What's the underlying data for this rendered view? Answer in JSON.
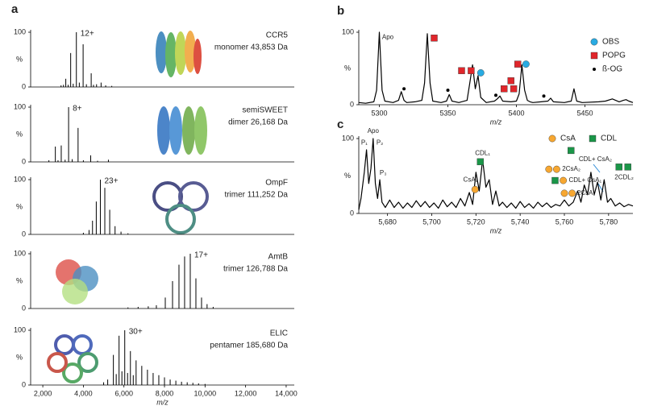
{
  "chart_data": [
    {
      "type": "stem",
      "panel": "a",
      "title": "CCR5",
      "subtitle": "monomer 43,853 Da",
      "peak_label": "12+",
      "color": "#000000",
      "x": [
        2900,
        3020,
        3133,
        3250,
        3374,
        3500,
        3655,
        3800,
        3988,
        4150,
        4386,
        4500,
        4650,
        4874,
        5100,
        5400
      ],
      "values": [
        3,
        4,
        15,
        4,
        62,
        6,
        100,
        8,
        78,
        5,
        25,
        4,
        5,
        8,
        3,
        2
      ],
      "xlim": [
        1400,
        14400
      ],
      "ylim": [
        0,
        100
      ],
      "yticks": [
        0,
        100
      ],
      "ylabel": "%"
    },
    {
      "type": "stem",
      "title": "semiSWEET",
      "subtitle": "dimer 26,168 Da",
      "peak_label": "8+",
      "color": "#000000",
      "x": [
        2300,
        2618,
        2750,
        2909,
        3100,
        3272,
        3450,
        3739,
        4000,
        4362,
        4700,
        5235
      ],
      "values": [
        3,
        28,
        3,
        30,
        4,
        100,
        5,
        62,
        3,
        12,
        2,
        4
      ],
      "xlim": [
        1400,
        14400
      ],
      "ylim": [
        0,
        100
      ],
      "yticks": [
        0,
        100
      ],
      "ylabel": "%"
    },
    {
      "type": "stem",
      "title": "OmpF",
      "subtitle": "trimer 111,252 Da",
      "peak_label": "23+",
      "color": "#000000",
      "x": [
        4000,
        4280,
        4451,
        4636,
        4838,
        5058,
        5299,
        5563,
        5856,
        6200
      ],
      "values": [
        3,
        8,
        25,
        60,
        100,
        85,
        45,
        15,
        5,
        2
      ],
      "xlim": [
        1400,
        14400
      ],
      "ylim": [
        0,
        100
      ],
      "yticks": [
        0,
        100
      ],
      "ylabel": "%"
    },
    {
      "type": "stem",
      "title": "AmtB",
      "subtitle": "trimer 126,788 Da",
      "peak_label": "17+",
      "color": "#000000",
      "x": [
        6200,
        6700,
        7200,
        7600,
        8039,
        8397,
        8714,
        8992,
        9271,
        9549,
        9827,
        10100,
        10400
      ],
      "values": [
        2,
        3,
        4,
        6,
        20,
        50,
        80,
        95,
        100,
        55,
        20,
        8,
        3
      ],
      "xlim": [
        1400,
        14400
      ],
      "ylim": [
        0,
        100
      ],
      "yticks": [
        0,
        100
      ],
      "ylabel": "%"
    },
    {
      "type": "stem",
      "title": "ELIC",
      "subtitle": "pentamer 185,680 Da",
      "peak_label": "30+",
      "color": "#000000",
      "x": [
        5000,
        5200,
        5480,
        5620,
        5760,
        5900,
        6040,
        6180,
        6320,
        6460,
        6600,
        6880,
        7160,
        7440,
        7720,
        8000,
        8280,
        8560,
        8840,
        9120,
        9400,
        9680,
        10000
      ],
      "values": [
        5,
        10,
        55,
        20,
        90,
        25,
        100,
        22,
        62,
        18,
        45,
        35,
        28,
        22,
        18,
        14,
        10,
        8,
        6,
        5,
        4,
        3,
        2
      ],
      "xlim": [
        1400,
        14400
      ],
      "ylim": [
        0,
        100
      ],
      "yticks": [
        0,
        100
      ],
      "ylabel": "%",
      "xticks": [
        {
          "value": 2000,
          "label": "2,000"
        },
        {
          "value": 4000,
          "label": "4,000"
        },
        {
          "value": 6000,
          "label": "6,000"
        },
        {
          "value": 8000,
          "label": "8,000"
        },
        {
          "value": 10000,
          "label": "10,000"
        },
        {
          "value": 12000,
          "label": "12,000"
        },
        {
          "value": 14000,
          "label": "14,000"
        }
      ],
      "xlabel": "m/z"
    },
    {
      "type": "line",
      "panel": "b",
      "color": "#000000",
      "x": [
        5285,
        5290,
        5296,
        5298,
        5300,
        5302,
        5304,
        5310,
        5314,
        5316,
        5318,
        5320,
        5326,
        5331,
        5333,
        5335,
        5337,
        5339,
        5345,
        5349,
        5351,
        5353,
        5358,
        5364,
        5366,
        5368,
        5370,
        5372,
        5374,
        5378,
        5384,
        5386,
        5388,
        5390,
        5396,
        5400,
        5402,
        5404,
        5406,
        5408,
        5410,
        5412,
        5418,
        5423,
        5425,
        5427,
        5435,
        5440,
        5442,
        5444,
        5448,
        5460,
        5465,
        5470,
        5475,
        5478,
        5480,
        5482,
        5485
      ],
      "values": [
        3,
        2,
        4,
        20,
        100,
        20,
        5,
        3,
        6,
        18,
        6,
        3,
        4,
        6,
        30,
        98,
        30,
        5,
        3,
        5,
        14,
        5,
        3,
        6,
        30,
        55,
        22,
        40,
        10,
        3,
        5,
        8,
        12,
        5,
        4,
        5,
        15,
        55,
        20,
        6,
        4,
        3,
        4,
        5,
        9,
        4,
        3,
        5,
        22,
        5,
        3,
        4,
        5,
        8,
        4,
        6,
        7,
        5,
        3
      ],
      "xlim": [
        5285,
        5485
      ],
      "ylim": [
        0,
        100
      ],
      "yticks": [
        0,
        100
      ],
      "ylabel": "%",
      "xticks": [
        5300,
        5350,
        5400,
        5450
      ],
      "xlabel": "m/z",
      "legend_position": "top-right",
      "legend": [
        {
          "name": "OBS",
          "color": "#29abe2",
          "marker": "circle"
        },
        {
          "name": "POPG",
          "color": "#e0262b",
          "marker": "square"
        },
        {
          "name": "ß-OG",
          "color": "#000000",
          "marker": "dot"
        }
      ],
      "markers": [
        {
          "symbol": "POPG",
          "x": 5340,
          "y": 92
        },
        {
          "symbol": "POPG",
          "x": 5360,
          "y": 47
        },
        {
          "symbol": "POPG",
          "x": 5367,
          "y": 47
        },
        {
          "symbol": "OBS",
          "x": 5374,
          "y": 44
        },
        {
          "symbol": "POPG",
          "x": 5396,
          "y": 33
        },
        {
          "symbol": "POPG",
          "x": 5391,
          "y": 22
        },
        {
          "symbol": "POPG",
          "x": 5398,
          "y": 22
        },
        {
          "symbol": "POPG",
          "x": 5401,
          "y": 56
        },
        {
          "symbol": "OBS",
          "x": 5407,
          "y": 56
        },
        {
          "symbol": "ß-OG",
          "x": 5318,
          "y": 22
        },
        {
          "symbol": "ß-OG",
          "x": 5350,
          "y": 20
        },
        {
          "symbol": "ß-OG",
          "x": 5385,
          "y": 13
        },
        {
          "symbol": "ß-OG",
          "x": 5420,
          "y": 12
        }
      ],
      "labels": [
        {
          "text": "Apo",
          "x": 5302,
          "y": 93,
          "anchor": "start"
        }
      ]
    },
    {
      "type": "line",
      "panel": "c",
      "color": "#000000",
      "x": [
        5667,
        5668,
        5669.5,
        5670.5,
        5671.5,
        5672.5,
        5673.5,
        5674.5,
        5675.5,
        5676.5,
        5677.5,
        5679,
        5681,
        5683,
        5685,
        5687,
        5689,
        5691,
        5693,
        5695,
        5697,
        5699,
        5701,
        5703,
        5705,
        5707,
        5709,
        5711,
        5713,
        5715,
        5717,
        5718.5,
        5720,
        5721.5,
        5723,
        5724.5,
        5726,
        5727.5,
        5729,
        5730.5,
        5732,
        5734,
        5736,
        5738,
        5740,
        5742,
        5744,
        5746,
        5748,
        5750,
        5752,
        5754,
        5756,
        5758,
        5760,
        5762,
        5764,
        5766,
        5767.5,
        5769,
        5770.5,
        5772,
        5773.5,
        5775,
        5776.5,
        5778,
        5779.5,
        5781,
        5783,
        5785,
        5787,
        5789,
        5791
      ],
      "values": [
        5,
        20,
        55,
        85,
        40,
        60,
        100,
        40,
        20,
        45,
        15,
        8,
        18,
        8,
        15,
        7,
        14,
        8,
        17,
        9,
        16,
        8,
        14,
        7,
        18,
        9,
        15,
        8,
        20,
        10,
        28,
        12,
        55,
        30,
        72,
        35,
        45,
        12,
        30,
        10,
        15,
        8,
        14,
        7,
        16,
        8,
        13,
        7,
        15,
        9,
        14,
        8,
        12,
        10,
        18,
        10,
        15,
        30,
        15,
        38,
        25,
        55,
        25,
        42,
        18,
        45,
        15,
        20,
        10,
        14,
        9,
        12,
        10
      ],
      "xlim": [
        5667,
        5791
      ],
      "ylim": [
        0,
        100
      ],
      "yticks": [
        0,
        100
      ],
      "ylabel": "%",
      "xticks": [
        {
          "value": 5680,
          "label": "5,680"
        },
        {
          "value": 5700,
          "label": "5,700"
        },
        {
          "value": 5720,
          "label": "5,720"
        },
        {
          "value": 5740,
          "label": "5,740"
        },
        {
          "value": 5760,
          "label": "5,760"
        },
        {
          "value": 5780,
          "label": "5,780"
        }
      ],
      "xlabel": "m/z",
      "legend_position": "top",
      "legend": [
        {
          "name": "CsA",
          "color": "#f7a731",
          "marker": "circle"
        },
        {
          "name": "CDL",
          "color": "#1a9648",
          "marker": "square"
        }
      ],
      "markers": [
        {
          "symbol": "CDL",
          "x": 5722,
          "y": 69
        },
        {
          "symbol": "CsA",
          "x": 5719.6,
          "y": 32
        },
        {
          "symbol": "CDL",
          "x": 5763,
          "y": 84
        },
        {
          "symbol": "CsA",
          "x": 5753,
          "y": 59
        },
        {
          "symbol": "CsA",
          "x": 5756.5,
          "y": 59
        },
        {
          "symbol": "CDL",
          "x": 5755.8,
          "y": 44
        },
        {
          "symbol": "CsA",
          "x": 5759.5,
          "y": 44
        },
        {
          "symbol": "CsA",
          "x": 5760,
          "y": 27
        },
        {
          "symbol": "CsA",
          "x": 5763.5,
          "y": 27
        },
        {
          "symbol": "CDL",
          "x": 5784.7,
          "y": 62
        },
        {
          "symbol": "CDL",
          "x": 5788.7,
          "y": 62
        }
      ],
      "labels": [
        {
          "text": "Apo",
          "x": 5673.5,
          "y": 110,
          "anchor": "middle"
        },
        {
          "text": "P₁",
          "x": 5669.5,
          "y": 94,
          "anchor": "middle"
        },
        {
          "text": "P₂",
          "x": 5676.5,
          "y": 94,
          "anchor": "middle"
        },
        {
          "text": "P₃",
          "x": 5678,
          "y": 54,
          "anchor": "middle"
        },
        {
          "text": "CDL₁",
          "x": 5723,
          "y": 80,
          "anchor": "middle"
        },
        {
          "text": "CsA₁",
          "x": 5717.5,
          "y": 45,
          "anchor": "middle"
        },
        {
          "text": "CDL+ CsA₂",
          "x": 5774,
          "y": 72,
          "anchor": "middle"
        },
        {
          "text": "2CsA₂",
          "x": 5759,
          "y": 59,
          "anchor": "start"
        },
        {
          "text": "CDL+ CsA₁",
          "x": 5762,
          "y": 44,
          "anchor": "start"
        },
        {
          "text": "2CsA₁",
          "x": 5765.8,
          "y": 27,
          "anchor": "start"
        },
        {
          "text": "2CDL₂",
          "x": 5787,
          "y": 48,
          "anchor": "middle"
        }
      ]
    }
  ]
}
